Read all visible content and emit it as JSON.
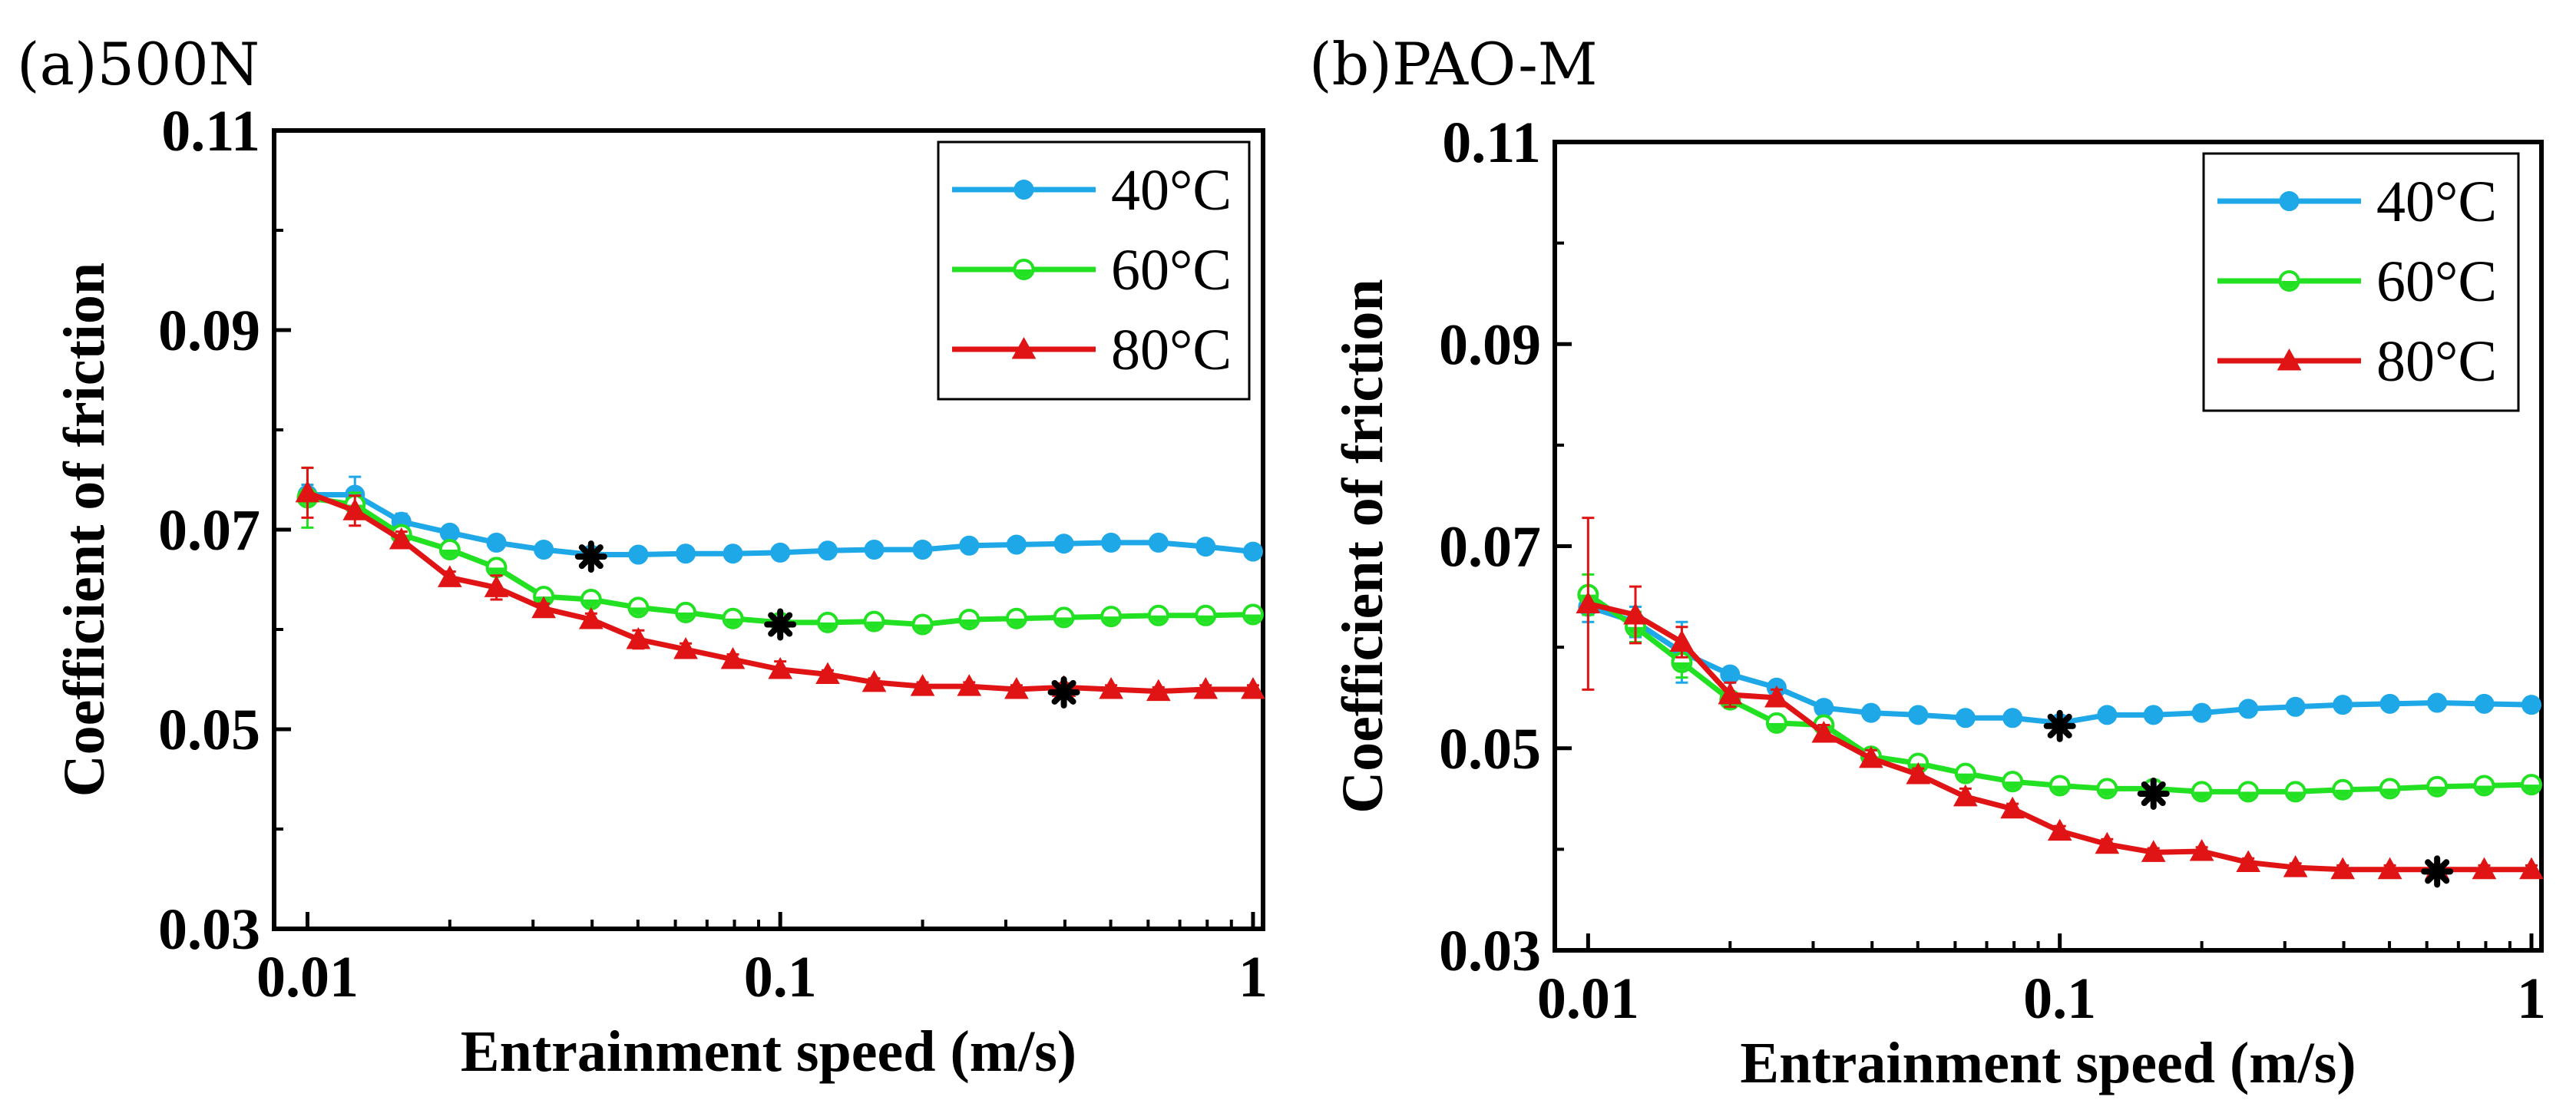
{
  "figure": {
    "panel_labels": [
      "(a)500N",
      "(b)PAO-M"
    ]
  },
  "chart_data": [
    {
      "type": "line",
      "title": "(a)500N",
      "xlabel": "Entrainment speed (m/s)",
      "ylabel": "Coefficient of friction",
      "xscale": "log",
      "xlim": [
        0.0085,
        1.05
      ],
      "ylim": [
        0.03,
        0.11
      ],
      "xticks": [
        0.01,
        0.1,
        1
      ],
      "xtick_labels": [
        "0.01",
        "0.1",
        "1"
      ],
      "yticks": [
        0.03,
        0.05,
        0.07,
        0.09,
        0.11
      ],
      "ytick_labels": [
        "0.03",
        "0.05",
        "0.07",
        "0.09",
        "0.11"
      ],
      "legend_position": "top-right",
      "x": [
        0.01,
        0.0126,
        0.0158,
        0.02,
        0.0251,
        0.0316,
        0.0398,
        0.0501,
        0.0631,
        0.0794,
        0.1,
        0.126,
        0.158,
        0.2,
        0.251,
        0.316,
        0.398,
        0.501,
        0.631,
        0.794,
        1.0
      ],
      "series": [
        {
          "name": "40°C",
          "color": "#1ea8e8",
          "marker": "circle",
          "values": [
            0.0735,
            0.0735,
            0.0708,
            0.0697,
            0.0687,
            0.068,
            0.0675,
            0.0675,
            0.0676,
            0.0676,
            0.0677,
            0.0679,
            0.068,
            0.068,
            0.0684,
            0.0685,
            0.0686,
            0.0687,
            0.0687,
            0.0683,
            0.0678
          ],
          "errors": [
            0.001,
            0.0018,
            0.0008,
            0.0004,
            0.0004,
            0.0003,
            0.0003,
            0.0003,
            0.0003,
            0.0003,
            0.0003,
            0.0003,
            0.0003,
            0.0003,
            0.0003,
            0.0003,
            0.0003,
            0.0003,
            0.0003,
            0.0003,
            0.0003
          ],
          "marked_point": {
            "x": 0.0398,
            "y": 0.0673
          }
        },
        {
          "name": "60°C",
          "color": "#22e022",
          "marker": "half-circle",
          "values": [
            0.0732,
            0.0725,
            0.0695,
            0.068,
            0.0662,
            0.0633,
            0.063,
            0.0622,
            0.0617,
            0.0611,
            0.0607,
            0.0607,
            0.0608,
            0.0605,
            0.061,
            0.0611,
            0.0612,
            0.0613,
            0.0614,
            0.0614,
            0.0615
          ],
          "errors": [
            0.003,
            0.0012,
            0.0008,
            0.0005,
            0.0005,
            0.0004,
            0.0004,
            0.0003,
            0.0003,
            0.0003,
            0.0003,
            0.0003,
            0.0003,
            0.0003,
            0.0003,
            0.0003,
            0.0003,
            0.0003,
            0.0003,
            0.0003,
            0.0003
          ],
          "marked_point": {
            "x": 0.1,
            "y": 0.0605
          }
        },
        {
          "name": "80°C",
          "color": "#e01414",
          "marker": "triangle",
          "values": [
            0.0737,
            0.0719,
            0.069,
            0.0652,
            0.0642,
            0.0621,
            0.061,
            0.059,
            0.058,
            0.057,
            0.056,
            0.0555,
            0.0547,
            0.0543,
            0.0543,
            0.054,
            0.0542,
            0.054,
            0.0538,
            0.054,
            0.054
          ],
          "errors": [
            0.0025,
            0.0015,
            0.0008,
            0.0006,
            0.0012,
            0.0005,
            0.0006,
            0.0009,
            0.0006,
            0.0005,
            0.0008,
            0.0004,
            0.0004,
            0.0004,
            0.0004,
            0.0004,
            0.0004,
            0.0004,
            0.0004,
            0.0004,
            0.0004
          ],
          "marked_point": {
            "x": 0.398,
            "y": 0.0537
          }
        }
      ]
    },
    {
      "type": "line",
      "title": "(b)PAO-M",
      "xlabel": "Entrainment speed (m/s)",
      "ylabel": "Coefficient of friction",
      "xscale": "log",
      "xlim": [
        0.0085,
        1.05
      ],
      "ylim": [
        0.03,
        0.11
      ],
      "xticks": [
        0.01,
        0.1,
        1
      ],
      "xtick_labels": [
        "0.01",
        "0.1",
        "1"
      ],
      "yticks": [
        0.03,
        0.05,
        0.07,
        0.09,
        0.11
      ],
      "ytick_labels": [
        "0.03",
        "0.05",
        "0.07",
        "0.09",
        "0.11"
      ],
      "legend_position": "top-right",
      "x": [
        0.01,
        0.0126,
        0.0158,
        0.02,
        0.0251,
        0.0316,
        0.0398,
        0.0501,
        0.0631,
        0.0794,
        0.1,
        0.126,
        0.158,
        0.2,
        0.251,
        0.316,
        0.398,
        0.501,
        0.631,
        0.794,
        1.0
      ],
      "series": [
        {
          "name": "40°C",
          "color": "#1ea8e8",
          "marker": "circle",
          "values": [
            0.064,
            0.0625,
            0.0595,
            0.0573,
            0.056,
            0.054,
            0.0535,
            0.0533,
            0.053,
            0.053,
            0.0525,
            0.0533,
            0.0533,
            0.0535,
            0.0539,
            0.0541,
            0.0543,
            0.0544,
            0.0545,
            0.0544,
            0.0543
          ],
          "errors": [
            0.0015,
            0.0015,
            0.003,
            0.0006,
            0.0005,
            0.0004,
            0.0004,
            0.0004,
            0.0004,
            0.0004,
            0.0004,
            0.0004,
            0.0004,
            0.0004,
            0.0004,
            0.0004,
            0.0004,
            0.0004,
            0.0004,
            0.0004,
            0.0004
          ],
          "marked_point": {
            "x": 0.1,
            "y": 0.0522
          }
        },
        {
          "name": "60°C",
          "color": "#22e022",
          "marker": "half-circle",
          "values": [
            0.0652,
            0.062,
            0.0585,
            0.0548,
            0.0525,
            0.0523,
            0.0492,
            0.0485,
            0.0475,
            0.0467,
            0.0463,
            0.046,
            0.046,
            0.0457,
            0.0457,
            0.0457,
            0.0459,
            0.046,
            0.0462,
            0.0463,
            0.0464
          ],
          "errors": [
            0.002,
            0.0015,
            0.0015,
            0.0008,
            0.0006,
            0.0005,
            0.0005,
            0.0004,
            0.0004,
            0.0004,
            0.0004,
            0.0004,
            0.0004,
            0.0004,
            0.0004,
            0.0004,
            0.0004,
            0.0004,
            0.0004,
            0.0004,
            0.0004
          ],
          "marked_point": {
            "x": 0.158,
            "y": 0.0455
          }
        },
        {
          "name": "80°C",
          "color": "#e01414",
          "marker": "triangle",
          "values": [
            0.0643,
            0.0632,
            0.0605,
            0.0553,
            0.055,
            0.0515,
            0.049,
            0.0474,
            0.0452,
            0.044,
            0.0418,
            0.0405,
            0.0397,
            0.0398,
            0.0387,
            0.0382,
            0.038,
            0.038,
            0.038,
            0.038,
            0.038
          ],
          "errors": [
            0.0085,
            0.0028,
            0.0015,
            0.0012,
            0.0008,
            0.0008,
            0.0008,
            0.0006,
            0.0008,
            0.0005,
            0.0005,
            0.0005,
            0.0004,
            0.0004,
            0.0004,
            0.0004,
            0.0004,
            0.0004,
            0.0004,
            0.0004,
            0.0004
          ],
          "marked_point": {
            "x": 0.631,
            "y": 0.0378
          }
        }
      ]
    }
  ]
}
